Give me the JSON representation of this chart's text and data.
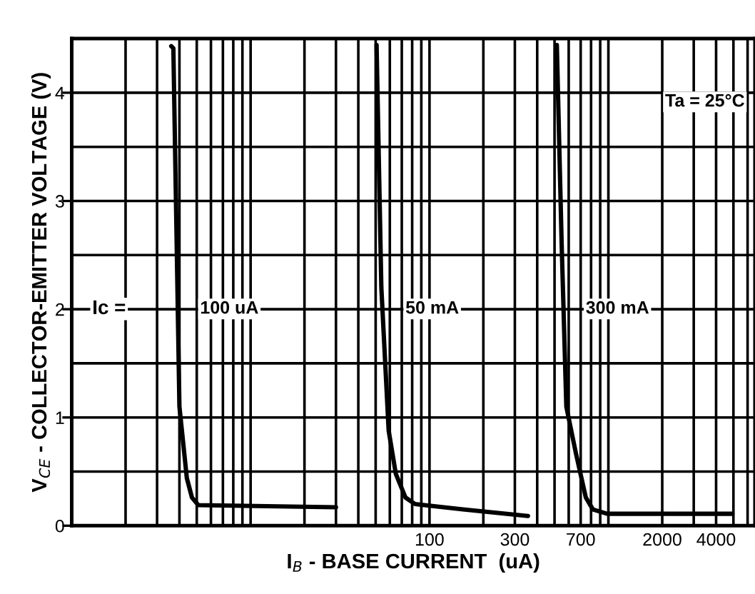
{
  "chart_data": {
    "type": "line",
    "xlabel": "I$_{B}$ - BASE CURRENT  (uA)",
    "ylabel": "V$_{CE}$ - COLLECTOR-EMITTER VOLTAGE (V)",
    "log": "x",
    "xlim": [
      1,
      6600
    ],
    "ylim": [
      0,
      4.5
    ],
    "xticks": [
      {
        "value": 2,
        "label": null
      },
      {
        "value": 3,
        "label": null
      },
      {
        "value": 4,
        "label": null
      },
      {
        "value": 5,
        "label": null
      },
      {
        "value": 6,
        "label": null
      },
      {
        "value": 7,
        "label": null
      },
      {
        "value": 8,
        "label": null
      },
      {
        "value": 9,
        "label": null
      },
      {
        "value": 10,
        "label": null
      },
      {
        "value": 20,
        "label": null
      },
      {
        "value": 30,
        "label": null
      },
      {
        "value": 40,
        "label": null
      },
      {
        "value": 50,
        "label": null
      },
      {
        "value": 60,
        "label": null
      },
      {
        "value": 70,
        "label": null
      },
      {
        "value": 80,
        "label": null
      },
      {
        "value": 90,
        "label": null
      },
      100,
      {
        "value": 200,
        "label": null
      },
      300,
      {
        "value": 400,
        "label": null
      },
      {
        "value": 500,
        "label": null
      },
      {
        "value": 600,
        "label": null
      },
      700,
      {
        "value": 800,
        "label": null
      },
      {
        "value": 900,
        "label": null
      },
      {
        "value": 1000,
        "label": null
      },
      2000,
      {
        "value": 3000,
        "label": null
      },
      4000,
      {
        "value": 5000,
        "label": null
      },
      {
        "value": 6000,
        "label": null
      }
    ],
    "yticks": [
      0,
      {
        "value": 0.5,
        "label": null
      },
      1,
      {
        "value": 1.5,
        "label": null
      },
      2,
      {
        "value": 2.5,
        "label": null
      },
      3,
      {
        "value": 3.5,
        "label": null
      },
      4
    ],
    "grid": true,
    "annotations": [
      "Ic =",
      "Ta = 25°C"
    ],
    "series": [
      {
        "name": "100 uA",
        "color": "#000000",
        "x": [
          3.6,
          3.7,
          4.0,
          4.4,
          4.7,
          5.1,
          30
        ],
        "values": [
          4.43,
          4.41,
          1.1,
          0.44,
          0.26,
          0.19,
          0.17
        ]
      },
      {
        "name": "50 mA",
        "color": "#000000",
        "x": [
          50.6,
          53.8,
          59.1,
          64.8,
          73.4,
          83,
          106,
          154,
          355
        ],
        "values": [
          4.44,
          2.2,
          0.88,
          0.48,
          0.26,
          0.2,
          0.18,
          0.15,
          0.09
        ]
      },
      {
        "name": "300 mA",
        "color": "#000000",
        "x": [
          515,
          548,
          582,
          660,
          748,
          820,
          985,
          4930
        ],
        "values": [
          4.44,
          2.6,
          1.1,
          0.66,
          0.26,
          0.15,
          0.11,
          0.11
        ]
      }
    ]
  }
}
